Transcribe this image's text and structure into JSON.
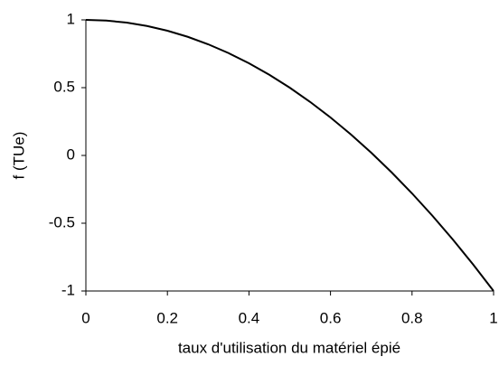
{
  "chart_data": {
    "type": "line",
    "xlabel": "taux d'utilisation du matériel épié",
    "ylabel": "f (TUe)",
    "x": [
      0,
      0.05,
      0.1,
      0.15,
      0.2,
      0.25,
      0.3,
      0.35,
      0.4,
      0.45,
      0.5,
      0.55,
      0.6,
      0.65,
      0.7,
      0.75,
      0.8,
      0.85,
      0.9,
      0.95,
      1
    ],
    "values": [
      1,
      0.995,
      0.98,
      0.955,
      0.92,
      0.875,
      0.82,
      0.755,
      0.68,
      0.595,
      0.5,
      0.395,
      0.28,
      0.155,
      0.02,
      -0.125,
      -0.28,
      -0.445,
      -0.62,
      -0.805,
      -1
    ],
    "color": "#000000",
    "xlim": [
      0,
      1
    ],
    "xticks": [
      0,
      0.2,
      0.4,
      0.6,
      0.8,
      1
    ],
    "ylim": [
      -1,
      1
    ],
    "yticks": [
      -1,
      -0.5,
      0,
      0.5,
      1
    ]
  }
}
